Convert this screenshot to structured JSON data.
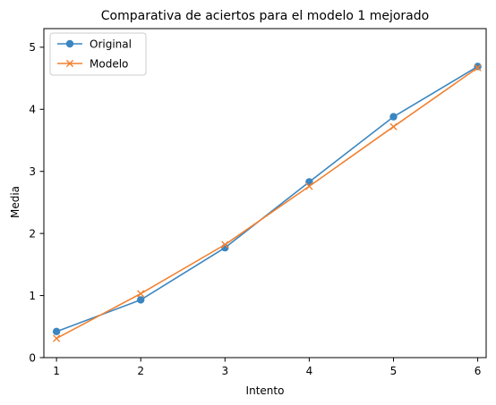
{
  "chart_data": {
    "type": "line",
    "title": "Comparativa de aciertos para el modelo 1 mejorado",
    "xlabel": "Intento",
    "ylabel": "Media",
    "x": [
      1,
      2,
      3,
      4,
      5,
      6
    ],
    "xlim": [
      0.85,
      6.1
    ],
    "ylim": [
      0,
      5.3
    ],
    "xticks": [
      1,
      2,
      3,
      4,
      5,
      6
    ],
    "yticks": [
      0,
      1,
      2,
      3,
      4,
      5
    ],
    "grid": false,
    "legend_position": "top-left",
    "series": [
      {
        "name": "Original",
        "values": [
          0.42,
          0.93,
          1.77,
          2.83,
          3.88,
          4.69
        ],
        "color": "#3a86c0",
        "marker": "circle"
      },
      {
        "name": "Modelo",
        "values": [
          0.31,
          1.03,
          1.82,
          2.76,
          3.72,
          4.67
        ],
        "color": "#f28030",
        "marker": "x"
      }
    ]
  }
}
